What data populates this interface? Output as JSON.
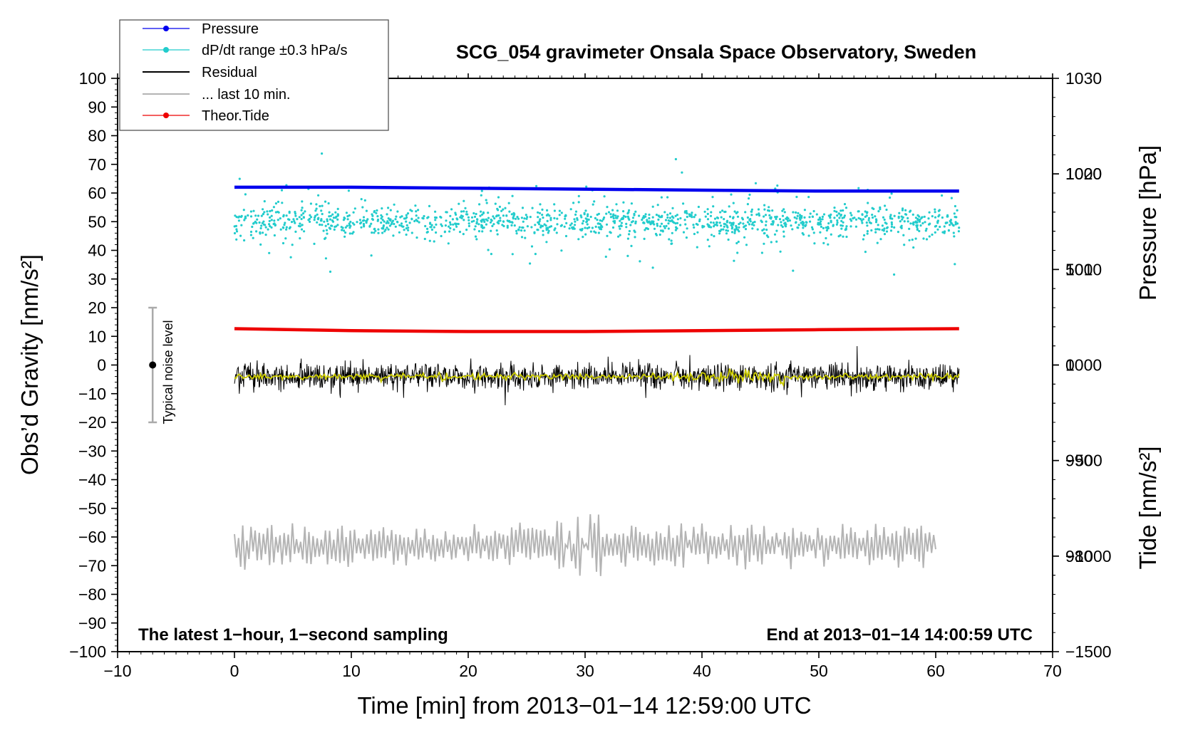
{
  "chart_data": {
    "type": "line",
    "title": "SCG_054 gravimeter Onsala Space Observatory, Sweden",
    "xlabel": "Time [min] from 2013−01−14 12:59:00 UTC",
    "ylabel_left": "Obs’d Gravity [nm/s²]",
    "ylabel_right_top": "Pressure [hPa]",
    "ylabel_right_bottom": "Tide [nm/s²]",
    "xlim": [
      -10,
      70
    ],
    "ylim": [
      -100,
      100
    ],
    "x_ticks": [
      -10,
      0,
      10,
      20,
      30,
      40,
      50,
      60,
      70
    ],
    "x_tick_labels": [
      "−10",
      "0",
      "10",
      "20",
      "30",
      "40",
      "50",
      "60",
      "70"
    ],
    "y_ticks": [
      100,
      90,
      80,
      70,
      60,
      50,
      40,
      30,
      20,
      10,
      0,
      -10,
      -20,
      -30,
      -40,
      -50,
      -60,
      -70,
      -80,
      -90,
      -100
    ],
    "y_tick_labels": [
      "100",
      "90",
      "80",
      "70",
      "60",
      "50",
      "40",
      "30",
      "20",
      "10",
      "0",
      "−10",
      "−20",
      "−30",
      "−40",
      "−50",
      "−60",
      "−70",
      "−80",
      "−90",
      "−100"
    ],
    "pressure_axis": {
      "range": [
        970,
        1030
      ],
      "ticks": [
        1030,
        1020,
        1010,
        1000,
        990,
        980
      ],
      "tick_labels": [
        "1030",
        "1020",
        "1010",
        "1000",
        "990",
        "980"
      ]
    },
    "tide_axis": {
      "range": [
        -1500,
        1500
      ],
      "ticks": [
        1000,
        500,
        0,
        -500,
        -1000,
        -1500
      ],
      "tick_labels": [
        "1000",
        "500",
        "0",
        "−500",
        "−1000",
        "−1500"
      ]
    },
    "grid": false,
    "legend_position": "top-left",
    "legend": [
      {
        "label": "Pressure",
        "color": "#0000ee",
        "marker": "dot"
      },
      {
        "label": "dP/dt range ±0.3 hPa/s",
        "color": "#22cccc",
        "marker": "dot"
      },
      {
        "label": "Residual",
        "color": "#000000",
        "marker": "line"
      },
      {
        "label": "... last 10 min.",
        "color": "#b4b4b4",
        "marker": "line"
      },
      {
        "label": "Theor.Tide",
        "color": "#ee0000",
        "marker": "dot"
      }
    ],
    "series": [
      {
        "name": "Pressure",
        "axis": "pressure",
        "color": "#0000ee",
        "style": "dots",
        "x": [
          0,
          5,
          10,
          20,
          30,
          40,
          50,
          62
        ],
        "y": [
          1018.6,
          1018.6,
          1018.6,
          1018.5,
          1018.4,
          1018.3,
          1018.2,
          1018.2
        ]
      },
      {
        "name": "dP/dt range ±0.3 hPa/s",
        "axis": "gravity",
        "color": "#22cccc",
        "style": "scatter",
        "x_range": [
          0,
          62
        ],
        "center": 50,
        "typical_spread": 4,
        "outlier_min": 27,
        "outlier_max": 83
      },
      {
        "name": "Residual",
        "axis": "gravity",
        "color": "#000000",
        "style": "noise_line",
        "x_range": [
          0,
          62
        ],
        "center": -4,
        "amplitude": 6,
        "min": -21,
        "max": 9
      },
      {
        "name": "Residual (smoothed)",
        "axis": "gravity",
        "color": "#cccc00",
        "style": "smooth_line",
        "x_range": [
          0,
          62
        ],
        "center": -4
      },
      {
        "name": "Theor.Tide",
        "axis": "tide",
        "color": "#ee0000",
        "style": "dots",
        "x": [
          0,
          10,
          20,
          30,
          40,
          50,
          62
        ],
        "y": [
          190,
          180,
          175,
          175,
          180,
          185,
          190
        ]
      },
      {
        "name": "... last 10 min.",
        "axis": "gravity",
        "color": "#b4b4b4",
        "style": "oscillation",
        "x_range": [
          0,
          60
        ],
        "center": -63,
        "amplitude": 7,
        "min": -78,
        "max": -51
      }
    ],
    "noise_bar": {
      "x": -7,
      "y": 0,
      "ylow": -20,
      "yhigh": 20,
      "label": "Typical noise level"
    },
    "annotations": [
      {
        "text": "The latest 1−hour, 1−second sampling",
        "position": "bottom-left"
      },
      {
        "text": "End at 2013−01−14 14:00:59 UTC",
        "position": "bottom-right"
      }
    ]
  }
}
